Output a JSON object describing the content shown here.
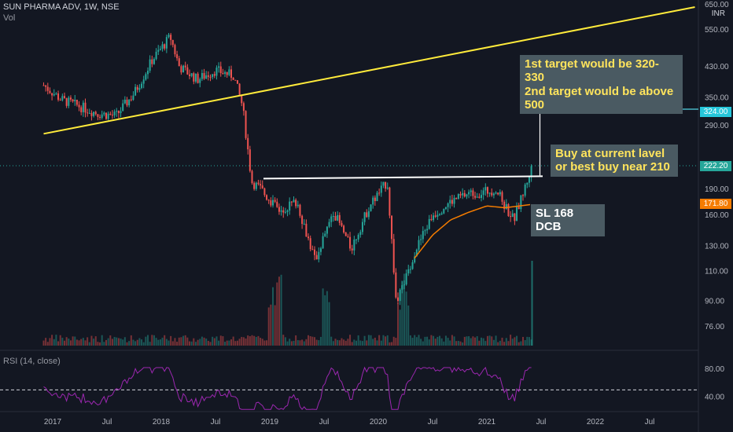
{
  "header": {
    "symbol": "SUN PHARMA ADV, 1W, NSE",
    "vol_label": "Vol"
  },
  "currency": "INR",
  "rsi_title": "RSI (14, close)",
  "annotations": {
    "targets_line1": "1st target would be 320-330",
    "targets_line2": "2nd target would be above 500",
    "buy_line1": "Buy at current lavel",
    "buy_line2": "or best buy near 210",
    "stoploss": "SL 168 DCB"
  },
  "badges": {
    "target": "324.00",
    "current": "222.20",
    "ma": "171.80"
  },
  "colors": {
    "background": "#131722",
    "up": "#26a69a",
    "down": "#ef5350",
    "trendline": "#ffeb3b",
    "support": "#ffffff",
    "ma": "#f57c00",
    "rsi": "#9c27b0",
    "target_badge": "#26c6da",
    "current_badge": "#26a69a",
    "ma_badge": "#f57c00"
  },
  "chart_data": {
    "type": "candlestick",
    "price_axis": {
      "scale": "log",
      "ticks": [
        76.0,
        90.0,
        110.0,
        130.0,
        160.0,
        190.0,
        220.0,
        290.0,
        350.0,
        430.0,
        550.0,
        650.0
      ]
    },
    "time_axis": {
      "ticks": [
        "2017",
        "Jul",
        "2018",
        "Jul",
        "2019",
        "Jul",
        "2020",
        "Jul",
        "2021",
        "Jul",
        "2022",
        "Jul"
      ]
    },
    "rsi_axis": {
      "ticks": [
        40.0,
        80.0
      ]
    },
    "weekly_close_sampled": [
      [
        "2016-12",
        380
      ],
      [
        "2017-02",
        345
      ],
      [
        "2017-04",
        330
      ],
      [
        "2017-06",
        315
      ],
      [
        "2017-08",
        310
      ],
      [
        "2017-10",
        360
      ],
      [
        "2017-12",
        450
      ],
      [
        "2018-02",
        525
      ],
      [
        "2018-03",
        430
      ],
      [
        "2018-05",
        395
      ],
      [
        "2018-07",
        420
      ],
      [
        "2018-09",
        405
      ],
      [
        "2018-10",
        330
      ],
      [
        "2018-11",
        200
      ],
      [
        "2018-12",
        190
      ],
      [
        "2019-02",
        165
      ],
      [
        "2019-04",
        175
      ],
      [
        "2019-06",
        118
      ],
      [
        "2019-08",
        165
      ],
      [
        "2019-10",
        128
      ],
      [
        "2019-12",
        170
      ],
      [
        "2020-02",
        200
      ],
      [
        "2020-03",
        88
      ],
      [
        "2020-05",
        125
      ],
      [
        "2020-07",
        160
      ],
      [
        "2020-09",
        175
      ],
      [
        "2020-11",
        185
      ],
      [
        "2020-12",
        185
      ],
      [
        "2021-02",
        190
      ],
      [
        "2021-03",
        170
      ],
      [
        "2021-04",
        155
      ],
      [
        "2021-05",
        185
      ],
      [
        "2021-06",
        222.2
      ]
    ],
    "moving_average_sampled": [
      [
        "2020-05",
        120
      ],
      [
        "2020-07",
        140
      ],
      [
        "2020-09",
        155
      ],
      [
        "2020-11",
        163
      ],
      [
        "2021-01",
        170
      ],
      [
        "2021-03",
        168
      ],
      [
        "2021-06",
        171.8
      ]
    ],
    "trendline": [
      [
        "2016-12",
        275
      ],
      [
        "2022-12",
        640
      ]
    ],
    "support_level": 204,
    "target_level": 324,
    "current_price": 222.2,
    "ma_value": 171.8
  }
}
